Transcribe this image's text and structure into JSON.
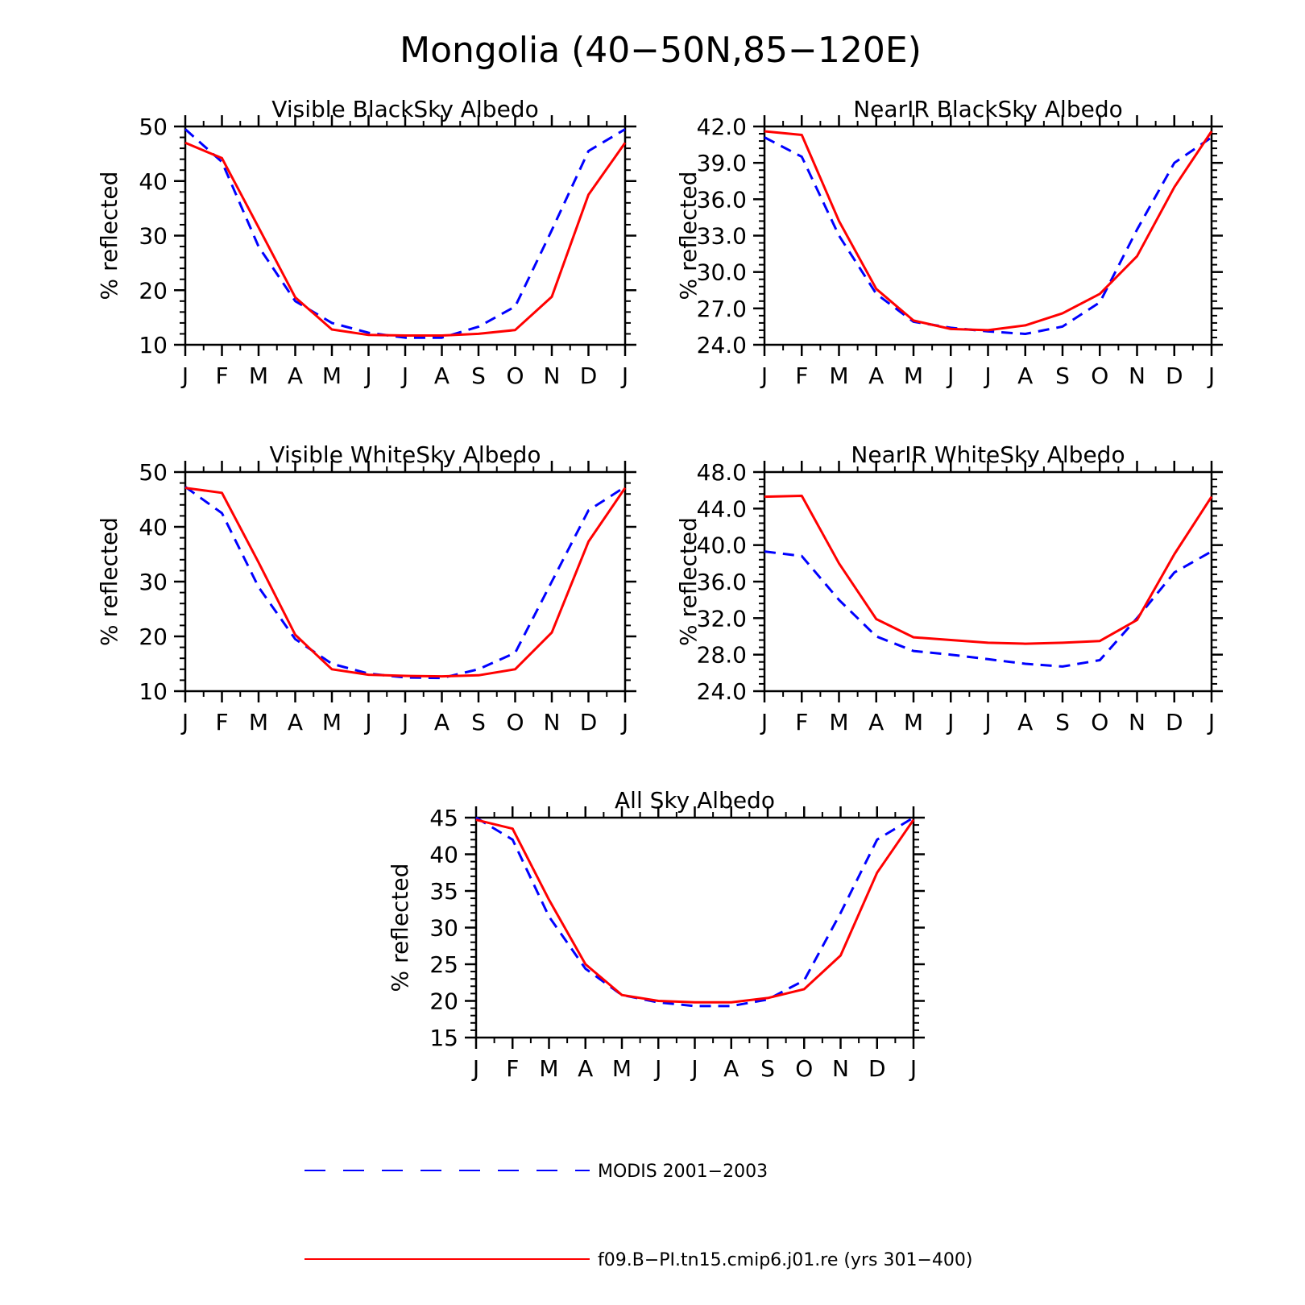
{
  "title": "Mongolia (40−50N,85−120E)",
  "months": [
    "J",
    "F",
    "M",
    "A",
    "M",
    "J",
    "J",
    "A",
    "S",
    "O",
    "N",
    "D",
    "J"
  ],
  "colors": {
    "obs": "#0000ff",
    "model": "#ff0000",
    "axis": "#000000"
  },
  "legend": {
    "obs_label": "MODIS 2001−2003",
    "model_label": "f09.B−PI.tn15.cmip6.j01.re (yrs 301−400)"
  },
  "chart_data": [
    {
      "type": "line",
      "title": "Visible BlackSky Albedo",
      "ylabel": "% reflected",
      "ylim": [
        10,
        50
      ],
      "yticks": [
        "10",
        "20",
        "30",
        "40",
        "50"
      ],
      "x": [
        "J",
        "F",
        "M",
        "A",
        "M",
        "J",
        "J",
        "A",
        "S",
        "O",
        "N",
        "D",
        "J"
      ],
      "series": [
        {
          "name": "MODIS 2001−2003",
          "style": "dashed",
          "values": [
            49.5,
            43.5,
            28,
            18,
            14,
            12.2,
            11.3,
            11.3,
            13.3,
            17,
            31,
            45.5,
            49.5
          ]
        },
        {
          "name": "f09.B−PI.tn15.cmip6.j01.re (yrs 301−400)",
          "style": "solid",
          "values": [
            47,
            44.2,
            31.5,
            18.7,
            12.8,
            11.8,
            11.7,
            11.7,
            12,
            12.7,
            18.8,
            37.5,
            47
          ]
        }
      ]
    },
    {
      "type": "line",
      "title": "NearIR BlackSky Albedo",
      "ylabel": "% reflected",
      "ylim": [
        24,
        42
      ],
      "yticks": [
        "24.0",
        "27.0",
        "30.0",
        "33.0",
        "36.0",
        "39.0",
        "42.0"
      ],
      "x": [
        "J",
        "F",
        "M",
        "A",
        "M",
        "J",
        "J",
        "A",
        "S",
        "O",
        "N",
        "D",
        "J"
      ],
      "series": [
        {
          "name": "MODIS 2001−2003",
          "style": "dashed",
          "values": [
            41.1,
            39.5,
            33,
            28.2,
            25.9,
            25.4,
            25.1,
            24.9,
            25.5,
            27.5,
            33.5,
            39,
            41.1
          ]
        },
        {
          "name": "f09.B−PI.tn15.cmip6.j01.re (yrs 301−400)",
          "style": "solid",
          "values": [
            41.6,
            41.3,
            34.2,
            28.6,
            26,
            25.3,
            25.2,
            25.6,
            26.6,
            28.2,
            31.3,
            37,
            41.6
          ]
        }
      ]
    },
    {
      "type": "line",
      "title": "Visible WhiteSky Albedo",
      "ylabel": "% reflected",
      "ylim": [
        10,
        50
      ],
      "yticks": [
        "10",
        "20",
        "30",
        "40",
        "50"
      ],
      "x": [
        "J",
        "F",
        "M",
        "A",
        "M",
        "J",
        "J",
        "A",
        "S",
        "O",
        "N",
        "D",
        "J"
      ],
      "series": [
        {
          "name": "MODIS 2001−2003",
          "style": "dashed",
          "values": [
            47.3,
            42.5,
            29,
            19.5,
            15,
            13.2,
            12.5,
            12.4,
            14,
            17,
            30,
            43,
            47.3
          ]
        },
        {
          "name": "f09.B−PI.tn15.cmip6.j01.re (yrs 301−400)",
          "style": "solid",
          "values": [
            47.1,
            46.2,
            33.5,
            20.3,
            14,
            13,
            12.8,
            12.7,
            12.9,
            14,
            20.7,
            37.3,
            47.1
          ]
        }
      ]
    },
    {
      "type": "line",
      "title": "NearIR WhiteSky Albedo",
      "ylabel": "% reflected",
      "ylim": [
        24,
        48
      ],
      "yticks": [
        "24.0",
        "28.0",
        "32.0",
        "36.0",
        "40.0",
        "44.0",
        "48.0"
      ],
      "x": [
        "J",
        "F",
        "M",
        "A",
        "M",
        "J",
        "J",
        "A",
        "S",
        "O",
        "N",
        "D",
        "J"
      ],
      "series": [
        {
          "name": "MODIS 2001−2003",
          "style": "dashed",
          "values": [
            39.3,
            38.8,
            34,
            30,
            28.4,
            28,
            27.5,
            27,
            26.7,
            27.4,
            32,
            37,
            39.3
          ]
        },
        {
          "name": "f09.B−PI.tn15.cmip6.j01.re (yrs 301−400)",
          "style": "solid",
          "values": [
            45.3,
            45.4,
            38,
            31.9,
            29.9,
            29.6,
            29.3,
            29.2,
            29.3,
            29.5,
            31.8,
            39,
            45.3
          ]
        }
      ]
    },
    {
      "type": "line",
      "title": "All Sky Albedo",
      "ylabel": "% reflected",
      "ylim": [
        15,
        45
      ],
      "yticks": [
        "15",
        "20",
        "25",
        "30",
        "35",
        "40",
        "45"
      ],
      "x": [
        "J",
        "F",
        "M",
        "A",
        "M",
        "J",
        "J",
        "A",
        "S",
        "O",
        "N",
        "D",
        "J"
      ],
      "series": [
        {
          "name": "MODIS 2001−2003",
          "style": "dashed",
          "values": [
            45,
            42,
            31.5,
            24.4,
            20.8,
            19.8,
            19.3,
            19.3,
            20.2,
            22.8,
            32,
            42,
            45
          ]
        },
        {
          "name": "f09.B−PI.tn15.cmip6.j01.re (yrs 301−400)",
          "style": "solid",
          "values": [
            44.7,
            43.5,
            33.8,
            25,
            20.8,
            20,
            19.8,
            19.8,
            20.4,
            21.6,
            26.2,
            37.5,
            44.7
          ]
        }
      ]
    }
  ]
}
